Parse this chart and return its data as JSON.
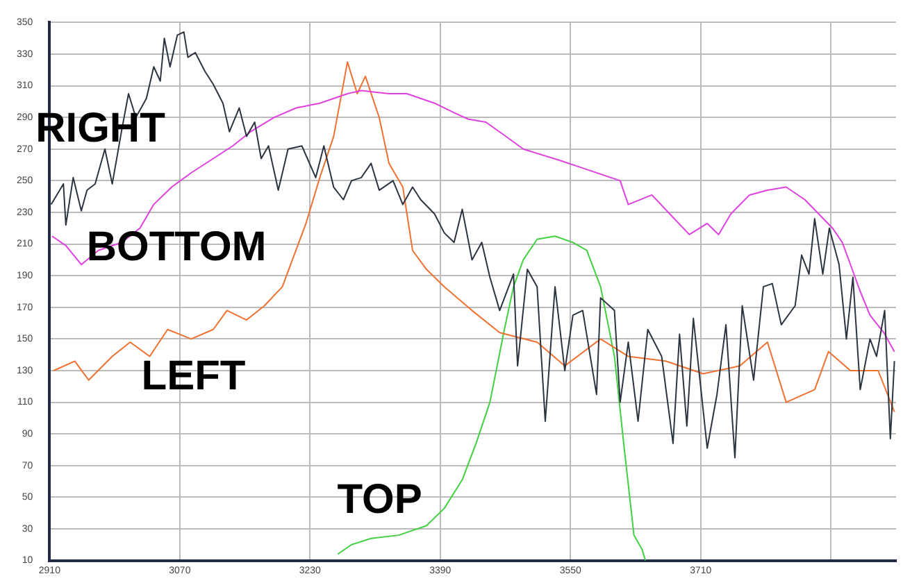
{
  "chart_data": {
    "type": "line",
    "legend": false,
    "grid": true,
    "marker": "none",
    "line_style": "solid",
    "xlim": [
      2910,
      3950
    ],
    "xticks": [
      2910,
      3070,
      3230,
      3390,
      3550,
      3710,
      {
        "value": 3870,
        "label": null
      }
    ],
    "ylim": [
      10,
      350
    ],
    "yticks": [
      10,
      30,
      50,
      70,
      90,
      110,
      130,
      150,
      170,
      190,
      210,
      230,
      250,
      270,
      290,
      310,
      330,
      350
    ],
    "series": [
      {
        "name": "RIGHT",
        "color": "#2b3440",
        "x": [
          2912,
          2927,
          2930,
          2939,
          2949,
          2956,
          2966,
          2978,
          2987,
          2999,
          3007,
          3016,
          3029,
          3038,
          3046,
          3051,
          3058,
          3067,
          3075,
          3080,
          3089,
          3101,
          3111,
          3123,
          3131,
          3143,
          3152,
          3162,
          3170,
          3179,
          3191,
          3203,
          3220,
          3237,
          3247,
          3259,
          3271,
          3281,
          3293,
          3305,
          3315,
          3332,
          3344,
          3356,
          3366,
          3383,
          3395,
          3407,
          3417,
          3429,
          3441,
          3451,
          3463,
          3480,
          3485,
          3497,
          3509,
          3519,
          3531,
          3543,
          3553,
          3565,
          3582,
          3587,
          3604,
          3611,
          3621,
          3633,
          3645,
          3662,
          3676,
          3684,
          3693,
          3701,
          3718,
          3730,
          3741,
          3752,
          3761,
          3775,
          3787,
          3798,
          3809,
          3826,
          3834,
          3843,
          3850,
          3860,
          3868,
          3880,
          3889,
          3897,
          3906,
          3918,
          3926,
          3936,
          3943,
          3948
        ],
        "values": [
          235,
          248,
          222,
          252,
          231,
          244,
          248,
          270,
          248,
          283,
          305,
          290,
          302,
          322,
          313,
          340,
          322,
          342,
          344,
          328,
          331,
          319,
          311,
          299,
          281,
          296,
          278,
          287,
          264,
          272,
          244,
          270,
          272,
          252,
          272,
          246,
          238,
          250,
          252,
          261,
          244,
          250,
          235,
          246,
          238,
          229,
          217,
          211,
          232,
          200,
          211,
          189,
          168,
          191,
          133,
          194,
          183,
          98,
          183,
          130,
          165,
          168,
          115,
          176,
          168,
          110,
          148,
          98,
          156,
          139,
          84,
          153,
          95,
          163,
          81,
          115,
          159,
          75,
          171,
          124,
          183,
          185,
          159,
          171,
          203,
          191,
          226,
          191,
          220,
          197,
          150,
          189,
          118,
          150,
          139,
          168,
          87,
          136
        ]
      },
      {
        "name": "BOTTOM",
        "color": "#e040e0",
        "x": [
          2913,
          2930,
          2949,
          2970,
          2999,
          3021,
          3038,
          3060,
          3084,
          3111,
          3135,
          3157,
          3186,
          3213,
          3242,
          3276,
          3293,
          3327,
          3349,
          3383,
          3407,
          3424,
          3446,
          3468,
          3492,
          3536,
          3565,
          3611,
          3621,
          3650,
          3672,
          3696,
          3718,
          3732,
          3747,
          3770,
          3792,
          3815,
          3838,
          3855,
          3872,
          3884,
          3894,
          3906,
          3918,
          3935,
          3948
        ],
        "values": [
          215,
          209,
          197,
          206,
          211,
          220,
          235,
          246,
          255,
          264,
          272,
          281,
          290,
          296,
          299,
          305,
          307,
          305,
          305,
          299,
          293,
          289,
          287,
          279,
          270,
          263,
          258,
          250,
          235,
          241,
          229,
          216,
          223,
          216,
          229,
          241,
          244,
          246,
          238,
          229,
          220,
          211,
          197,
          180,
          165,
          154,
          142
        ]
      },
      {
        "name": "LEFT",
        "color": "#f07030",
        "x": [
          2915,
          2941,
          2958,
          2987,
          3009,
          3033,
          3055,
          3084,
          3111,
          3128,
          3152,
          3174,
          3196,
          3225,
          3242,
          3259,
          3276,
          3288,
          3298,
          3315,
          3327,
          3344,
          3356,
          3373,
          3395,
          3429,
          3463,
          3509,
          3543,
          3587,
          3621,
          3667,
          3713,
          3758,
          3792,
          3815,
          3850,
          3867,
          3894,
          3928,
          3948
        ],
        "values": [
          130,
          136,
          124,
          139,
          148,
          139,
          156,
          150,
          156,
          168,
          162,
          171,
          183,
          223,
          252,
          278,
          325,
          305,
          316,
          290,
          261,
          246,
          206,
          194,
          183,
          168,
          154,
          148,
          133,
          150,
          139,
          136,
          128,
          133,
          148,
          110,
          118,
          142,
          130,
          130,
          104
        ]
      },
      {
        "name": "TOP",
        "color": "#40d040",
        "x": [
          3264,
          3281,
          3305,
          3339,
          3373,
          3395,
          3417,
          3434,
          3451,
          3468,
          3480,
          3492,
          3509,
          3531,
          3553,
          3570,
          3587,
          3604,
          3616,
          3628,
          3638,
          3642
        ],
        "values": [
          14,
          20,
          24,
          26,
          32,
          43,
          61,
          84,
          110,
          154,
          183,
          200,
          213,
          215,
          211,
          206,
          183,
          139,
          81,
          26,
          17,
          10
        ]
      }
    ]
  }
}
